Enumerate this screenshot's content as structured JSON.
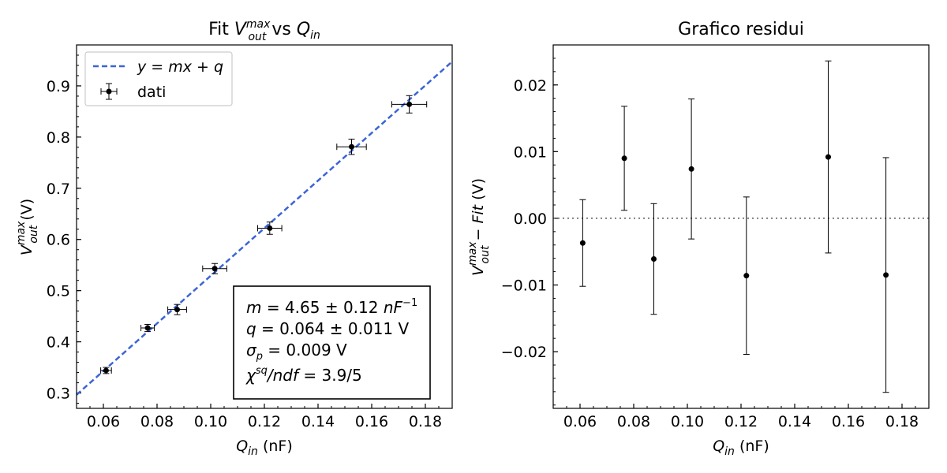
{
  "chart_data": [
    {
      "type": "scatter",
      "title": "Fit V_out^max vs Q_in",
      "xlabel": "Q_in (nF)",
      "ylabel": "V_out^max (V)",
      "xlim": [
        0.05,
        0.19
      ],
      "ylim": [
        0.27,
        0.98
      ],
      "xticks": [
        "0.06",
        "0.08",
        "0.10",
        "0.12",
        "0.14",
        "0.16",
        "0.18"
      ],
      "yticks": [
        "0.3",
        "0.4",
        "0.5",
        "0.6",
        "0.7",
        "0.8",
        "0.9"
      ],
      "series": [
        {
          "name": "dati",
          "x": [
            0.061,
            0.0765,
            0.0875,
            0.1015,
            0.122,
            0.1525,
            0.174
          ],
          "y": [
            0.344,
            0.427,
            0.463,
            0.543,
            0.622,
            0.781,
            0.864
          ],
          "xerr": [
            0.002,
            0.0025,
            0.0035,
            0.0045,
            0.0045,
            0.0055,
            0.0065
          ],
          "yerr": [
            0.006,
            0.007,
            0.01,
            0.01,
            0.012,
            0.015,
            0.017
          ],
          "color": "#000000"
        }
      ],
      "fit": {
        "name": "y = mx + q",
        "m": 4.65,
        "q": 0.064,
        "color": "#3b64d6",
        "style": "dashed"
      },
      "legend_position": "top-left",
      "legend": {
        "fit_label": "y = mx + q",
        "data_label": "dati"
      },
      "annotation": [
        "m = 4.65 ± 0.12 nF⁻¹",
        "q = 0.064 ± 0.011 V",
        "σp = 0.009 V",
        "χsq/ndf = 3.9/5"
      ],
      "grid": false
    },
    {
      "type": "scatter",
      "title": "Grafico residui",
      "xlabel": "Q_in (nF)",
      "ylabel": "V_out^max − Fit (V)",
      "xlim": [
        0.05,
        0.19
      ],
      "ylim": [
        -0.0285,
        0.026
      ],
      "xticks": [
        "0.06",
        "0.08",
        "0.10",
        "0.12",
        "0.14",
        "0.16",
        "0.18"
      ],
      "yticks": [
        "−0.02",
        "−0.01",
        "0.00",
        "0.01",
        "0.02"
      ],
      "series": [
        {
          "x": [
            0.061,
            0.0765,
            0.0875,
            0.1015,
            0.122,
            0.1525,
            0.174
          ],
          "y": [
            -0.0037,
            0.009,
            -0.0061,
            0.0074,
            -0.0086,
            0.0092,
            -0.0085
          ],
          "yerr": [
            0.0065,
            0.0078,
            0.0083,
            0.0105,
            0.0118,
            0.0144,
            0.0176
          ],
          "color": "#000000"
        }
      ],
      "reference_line": {
        "y": 0.0,
        "color": "#808080",
        "style": "dotted"
      },
      "grid": false
    }
  ]
}
